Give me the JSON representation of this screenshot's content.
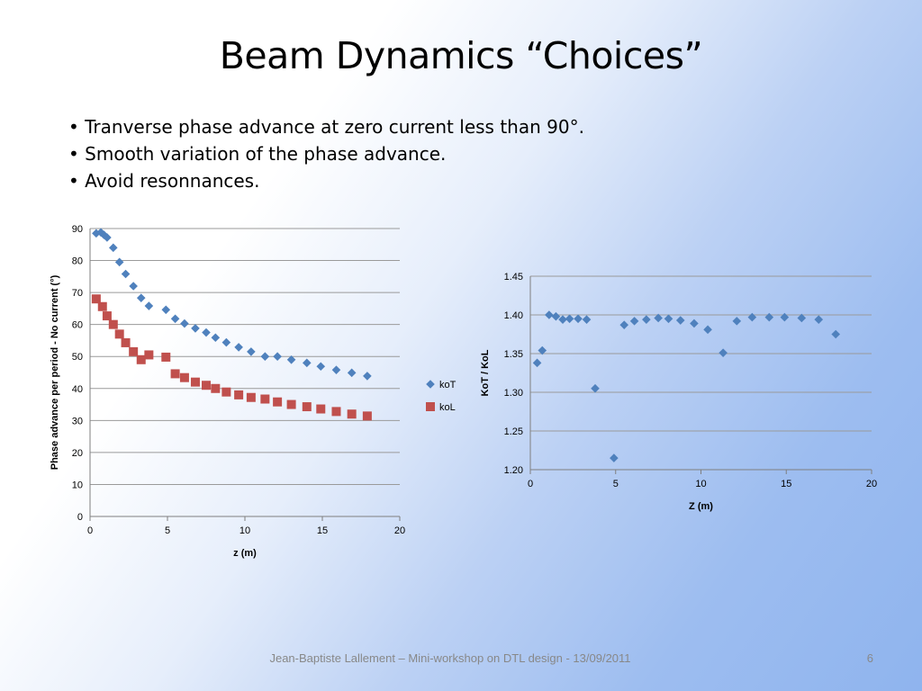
{
  "slide": {
    "title": "Beam Dynamics “Choices”",
    "bullets": [
      "Tranverse phase advance at zero current less than 90°.",
      "Smooth variation of the phase advance.",
      "Avoid resonnances."
    ],
    "footer": "Jean-Baptiste Lallement – Mini-workshop on DTL design - 13/09/2011",
    "page_number": "6"
  },
  "chart_data": [
    {
      "type": "scatter",
      "xlabel": "z (m)",
      "ylabel": "Phase advance per period - No current (°)",
      "xlim": [
        0,
        20
      ],
      "ylim": [
        0,
        90
      ],
      "xticks": [
        0,
        5,
        10,
        15,
        20
      ],
      "yticks": [
        0,
        10,
        20,
        30,
        40,
        50,
        60,
        70,
        80,
        90
      ],
      "xtick_labels": [
        "0",
        "5",
        "10",
        "15",
        "20"
      ],
      "ytick_labels": [
        "0",
        "10",
        "20",
        "30",
        "40",
        "50",
        "60",
        "70",
        "80",
        "90"
      ],
      "grid": "horizontal",
      "legend_position": "right",
      "series": [
        {
          "name": "koT",
          "color": "#4f81bd",
          "marker": "diamond",
          "x": [
            0.4,
            0.7,
            0.9,
            1.1,
            1.5,
            1.9,
            2.3,
            2.8,
            3.3,
            3.8,
            4.9,
            5.5,
            6.1,
            6.8,
            7.5,
            8.1,
            8.8,
            9.6,
            10.4,
            11.3,
            12.1,
            13.0,
            14.0,
            14.9,
            15.9,
            16.9,
            17.9
          ],
          "y": [
            88.5,
            88.8,
            88.0,
            87.2,
            84.0,
            79.5,
            75.8,
            72.0,
            68.3,
            65.8,
            64.6,
            61.8,
            60.3,
            58.8,
            57.5,
            55.9,
            54.4,
            52.9,
            51.5,
            50.0,
            50.0,
            49.0,
            48.0,
            46.9,
            45.8,
            44.9,
            43.9
          ]
        },
        {
          "name": "koL",
          "color": "#c0504d",
          "marker": "square",
          "x": [
            0.4,
            0.8,
            1.1,
            1.5,
            1.9,
            2.3,
            2.8,
            3.3,
            3.8,
            4.9,
            5.5,
            6.1,
            6.8,
            7.5,
            8.1,
            8.8,
            9.6,
            10.4,
            11.3,
            12.1,
            13.0,
            14.0,
            14.9,
            15.9,
            16.9,
            17.9
          ],
          "y": [
            68.0,
            65.6,
            62.7,
            60.0,
            57.0,
            54.3,
            51.5,
            49.0,
            50.5,
            49.8,
            44.6,
            43.4,
            42.0,
            41.0,
            40.0,
            38.9,
            38.0,
            37.2,
            36.7,
            35.8,
            35.0,
            34.3,
            33.6,
            32.8,
            32.0,
            31.4
          ]
        }
      ]
    },
    {
      "type": "scatter",
      "xlabel": "Z (m)",
      "ylabel": "KoT / KoL",
      "xlim": [
        0,
        20
      ],
      "ylim": [
        1.2,
        1.45
      ],
      "xticks": [
        0,
        5,
        10,
        15,
        20
      ],
      "yticks": [
        1.2,
        1.25,
        1.3,
        1.35,
        1.4,
        1.45
      ],
      "xtick_labels": [
        "0",
        "5",
        "10",
        "15",
        "20"
      ],
      "ytick_labels": [
        "1.20",
        "1.25",
        "1.30",
        "1.35",
        "1.40",
        "1.45"
      ],
      "grid": "horizontal",
      "series": [
        {
          "color": "#4f81bd",
          "marker": "diamond",
          "x": [
            0.4,
            0.7,
            1.1,
            1.5,
            1.9,
            2.3,
            2.8,
            3.3,
            3.8,
            4.9,
            5.5,
            6.1,
            6.8,
            7.5,
            8.1,
            8.8,
            9.6,
            10.4,
            11.3,
            12.1,
            13.0,
            14.0,
            14.9,
            15.9,
            16.9,
            17.9
          ],
          "y": [
            1.338,
            1.354,
            1.4,
            1.398,
            1.394,
            1.395,
            1.395,
            1.394,
            1.305,
            1.215,
            1.387,
            1.392,
            1.394,
            1.396,
            1.395,
            1.393,
            1.389,
            1.381,
            1.351,
            1.392,
            1.397,
            1.397,
            1.397,
            1.396,
            1.394,
            1.375
          ]
        }
      ]
    }
  ]
}
